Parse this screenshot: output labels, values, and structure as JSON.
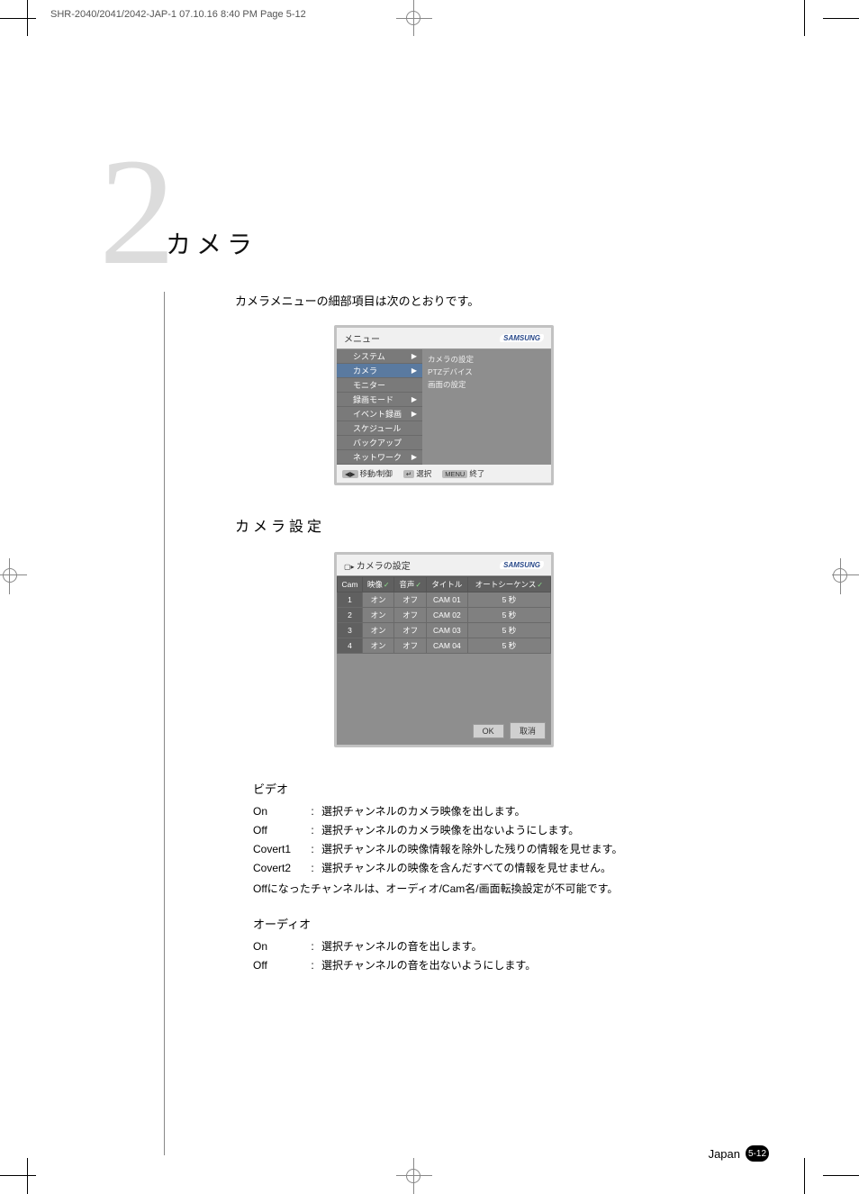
{
  "header_line": "SHR-2040/2041/2042-JAP-1  07.10.16 8:40 PM  Page 5-12",
  "chapter_number": "2",
  "chapter_title": "カメラ",
  "intro": "カメラメニューの細部項目は次のとおりです。",
  "menu": {
    "title": "メニュー",
    "brand": "SAMSUNG",
    "items": [
      {
        "label": "システム",
        "arrow": true,
        "sel": false
      },
      {
        "label": "カメラ",
        "arrow": true,
        "sel": true
      },
      {
        "label": "モニター",
        "arrow": false,
        "sel": false
      },
      {
        "label": "録画モード",
        "arrow": true,
        "sel": false
      },
      {
        "label": "イベント録画",
        "arrow": true,
        "sel": false
      },
      {
        "label": "スケジュール",
        "arrow": false,
        "sel": false
      },
      {
        "label": "バックアップ",
        "arrow": false,
        "sel": false
      },
      {
        "label": "ネットワーク",
        "arrow": true,
        "sel": false
      }
    ],
    "submenu": [
      "カメラの設定",
      "PTZデバイス",
      "画面の設定"
    ],
    "footer_move": "移動/制御",
    "footer_select": "選択",
    "footer_exit": "終了"
  },
  "section_heading": "カメラ設定",
  "cam": {
    "title": "カメラの設定",
    "brand": "SAMSUNG",
    "columns": [
      "Cam",
      "映像",
      "音声",
      "タイトル",
      "オートシーケンス"
    ],
    "rows": [
      [
        "1",
        "オン",
        "オフ",
        "CAM 01",
        "5 秒"
      ],
      [
        "2",
        "オン",
        "オフ",
        "CAM 02",
        "5 秒"
      ],
      [
        "3",
        "オン",
        "オフ",
        "CAM 03",
        "5 秒"
      ],
      [
        "4",
        "オン",
        "オフ",
        "CAM 04",
        "5 秒"
      ]
    ],
    "ok": "OK",
    "cancel": "取消"
  },
  "video_section": {
    "title": "ビデオ",
    "rows": [
      {
        "k": "On",
        "v": "選択チャンネルのカメラ映像を出します。"
      },
      {
        "k": "Off",
        "v": "選択チャンネルのカメラ映像を出ないようにします。"
      },
      {
        "k": "Covert1",
        "v": "選択チャンネルの映像情報を除外した残りの情報を見せます。"
      },
      {
        "k": "Covert2",
        "v": "選択チャンネルの映像を含んだすべての情報を見せません。"
      }
    ],
    "note": "Offになったチャンネルは、オーディオ/Cam名/画面転換設定が不可能です。"
  },
  "audio_section": {
    "title": "オーディオ",
    "rows": [
      {
        "k": "On",
        "v": "選択チャンネルの音を出します。"
      },
      {
        "k": "Off",
        "v": "選択チャンネルの音を出ないようにします。"
      }
    ]
  },
  "footer_country": "Japan",
  "footer_page": "5-12"
}
